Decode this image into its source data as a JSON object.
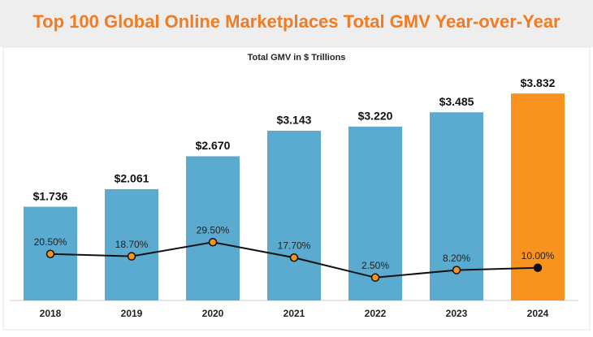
{
  "chart_data": {
    "type": "bar",
    "title": "Top 100 Global Online Marketplaces Total GMV Year-over-Year",
    "subtitle": "Total GMV in $ Trillions",
    "categories": [
      "2018",
      "2019",
      "2020",
      "2021",
      "2022",
      "2023",
      "2024"
    ],
    "series": [
      {
        "values": [
          1.736,
          2.061,
          2.67,
          3.143,
          3.22,
          3.485,
          3.832
        ],
        "value_labels": [
          "$1.736",
          "$2.061",
          "$2.670",
          "$3.143",
          "$3.220",
          "$3.485",
          "$3.832"
        ],
        "colors": [
          "#5aabcf",
          "#5aabcf",
          "#5aabcf",
          "#5aabcf",
          "#5aabcf",
          "#5aabcf",
          "#f7931e"
        ]
      },
      {
        "type": "line",
        "axis": "y2",
        "color": "#111111",
        "marker_colors": [
          "#f7931e",
          "#f7931e",
          "#f7931e",
          "#f7931e",
          "#f7931e",
          "#f7931e",
          "#111111"
        ],
        "values": [
          20.5,
          18.7,
          29.5,
          17.7,
          2.5,
          8.2,
          10.0
        ],
        "value_labels": [
          "20.50%",
          "18.70%",
          "29.50%",
          "17.70%",
          "2.50%",
          "8.20%",
          "10.00%"
        ]
      }
    ],
    "ylim": [
      0,
      4
    ],
    "y2lim": [
      -15,
      150
    ]
  }
}
